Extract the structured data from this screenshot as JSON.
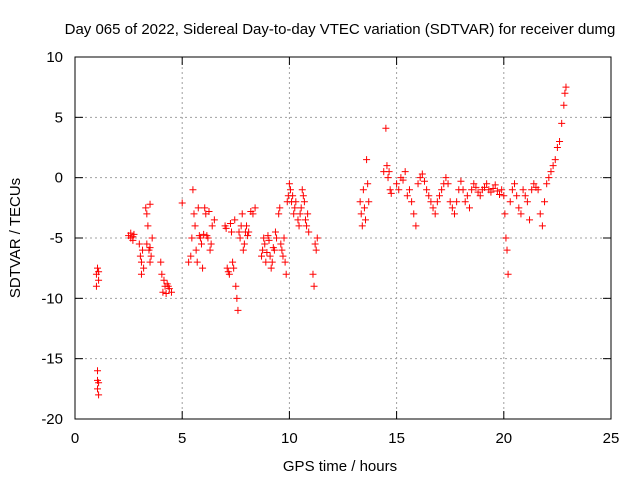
{
  "chart_data": {
    "type": "scatter",
    "title": "Day 065 of 2022, Sidereal Day-to-day VTEC variation (SDTVAR) for receiver dumg",
    "xlabel": "GPS time / hours",
    "ylabel": "SDTVAR / TECUs",
    "xlim": [
      0,
      25
    ],
    "ylim": [
      -20,
      10
    ],
    "xticks": [
      0,
      5,
      10,
      15,
      20,
      25
    ],
    "yticks": [
      -20,
      -15,
      -10,
      -5,
      0,
      5,
      10
    ],
    "xtick_labels": [
      "0",
      "5",
      "10",
      "15",
      "20",
      "25"
    ],
    "ytick_labels": [
      "-20",
      "-15",
      "-10",
      "-5",
      "0",
      "5",
      "10"
    ],
    "grid": true,
    "marker": "+",
    "color": "#ff0000",
    "series": [
      {
        "name": "SDTVAR",
        "x": [
          1.0,
          1.0,
          1.05,
          1.05,
          1.05,
          1.05,
          1.1,
          1.1,
          1.1,
          1.1,
          2.5,
          2.6,
          2.6,
          2.7,
          2.7,
          2.75,
          3.0,
          3.05,
          3.1,
          3.1,
          3.15,
          3.2,
          3.3,
          3.35,
          3.35,
          3.4,
          3.45,
          3.5,
          3.5,
          3.5,
          3.55,
          3.6,
          4.0,
          4.05,
          4.1,
          4.15,
          4.2,
          4.25,
          4.3,
          4.35,
          4.4,
          4.5,
          5.0,
          5.3,
          5.4,
          5.45,
          5.5,
          5.55,
          5.6,
          5.65,
          5.7,
          5.75,
          5.8,
          5.85,
          5.9,
          5.95,
          6.0,
          6.05,
          6.1,
          6.15,
          6.2,
          6.25,
          6.3,
          6.35,
          6.4,
          6.5,
          7.0,
          7.05,
          7.1,
          7.15,
          7.2,
          7.25,
          7.3,
          7.35,
          7.4,
          7.45,
          7.5,
          7.55,
          7.6,
          7.65,
          7.7,
          7.75,
          7.8,
          7.85,
          7.9,
          7.95,
          8.0,
          8.05,
          8.1,
          8.2,
          8.3,
          8.4,
          8.7,
          8.75,
          8.8,
          8.85,
          8.9,
          8.95,
          9.0,
          9.05,
          9.1,
          9.15,
          9.2,
          9.25,
          9.3,
          9.35,
          9.4,
          9.5,
          9.55,
          9.6,
          9.65,
          9.7,
          9.75,
          9.8,
          9.85,
          9.9,
          9.95,
          10.0,
          10.05,
          10.1,
          10.15,
          10.2,
          10.25,
          10.3,
          10.4,
          10.45,
          10.5,
          10.55,
          10.6,
          10.65,
          10.7,
          10.75,
          10.8,
          10.85,
          10.9,
          11.1,
          11.15,
          11.2,
          11.25,
          11.3,
          13.3,
          13.35,
          13.4,
          13.45,
          13.5,
          13.55,
          13.6,
          13.65,
          13.7,
          14.4,
          14.5,
          14.55,
          14.6,
          14.65,
          14.7,
          14.75,
          15.0,
          15.1,
          15.2,
          15.3,
          15.4,
          15.5,
          15.6,
          15.7,
          15.8,
          15.9,
          16.0,
          16.1,
          16.2,
          16.3,
          16.4,
          16.5,
          16.6,
          16.7,
          16.8,
          16.9,
          17.0,
          17.1,
          17.2,
          17.3,
          17.4,
          17.5,
          17.6,
          17.7,
          17.8,
          17.9,
          18.0,
          18.1,
          18.2,
          18.3,
          18.4,
          18.5,
          18.6,
          18.7,
          18.8,
          18.9,
          19.0,
          19.1,
          19.2,
          19.3,
          19.4,
          19.5,
          19.6,
          19.7,
          19.8,
          19.9,
          20.0,
          20.05,
          20.1,
          20.15,
          20.2,
          20.3,
          20.4,
          20.5,
          20.6,
          20.7,
          20.8,
          20.9,
          21.0,
          21.1,
          21.2,
          21.3,
          21.4,
          21.5,
          21.6,
          21.7,
          21.8,
          21.9,
          22.0,
          22.1,
          22.2,
          22.3,
          22.4,
          22.5,
          22.6,
          22.7,
          22.8,
          22.85,
          22.9
        ],
        "y": [
          -9.0,
          -8.0,
          -7.5,
          -16.0,
          -16.8,
          -17.5,
          -18.0,
          -8.5,
          -17.0,
          -7.8,
          -4.8,
          -5.0,
          -4.6,
          -4.9,
          -5.2,
          -4.7,
          -5.5,
          -6.5,
          -7.0,
          -8.0,
          -6.0,
          -7.5,
          -2.5,
          -3.0,
          -5.5,
          -4.0,
          -6.0,
          -7.0,
          -5.8,
          -2.2,
          -6.5,
          -5.0,
          -7.0,
          -8.0,
          -9.5,
          -8.5,
          -9.0,
          -9.6,
          -8.8,
          -9.0,
          -9.2,
          -9.5,
          -2.1,
          -7.0,
          -6.5,
          -5.0,
          -1.0,
          -3.0,
          -4.0,
          -6.0,
          -7.0,
          -2.5,
          -4.8,
          -5.0,
          -5.5,
          -7.5,
          -4.7,
          -2.5,
          -3.0,
          -4.8,
          -5.0,
          -2.8,
          -6.0,
          -5.5,
          -4.0,
          -3.5,
          -4.0,
          -4.2,
          -7.5,
          -7.8,
          -8.0,
          -3.8,
          -4.5,
          -7.0,
          -7.5,
          -3.5,
          -9.0,
          -10.0,
          -11.0,
          -4.5,
          -5.0,
          -4.0,
          -3.0,
          -6.0,
          -5.5,
          -4.5,
          -4.0,
          -4.8,
          -4.5,
          -2.8,
          -3.0,
          -2.5,
          -6.5,
          -6.0,
          -5.0,
          -5.5,
          -7.0,
          -6.2,
          -4.8,
          -5.2,
          -6.5,
          -7.5,
          -7.0,
          -5.8,
          -6.0,
          -4.5,
          -5.0,
          -3.0,
          -2.5,
          -5.5,
          -6.0,
          -6.5,
          -5.0,
          -7.0,
          -8.0,
          -2.0,
          -1.5,
          -0.5,
          -1.0,
          -2.0,
          -1.5,
          -3.0,
          -2.5,
          -2.0,
          -3.5,
          -4.0,
          -3.0,
          -2.5,
          -1.0,
          -1.5,
          -2.0,
          -3.5,
          -4.0,
          -3.0,
          -4.5,
          -8.0,
          -9.0,
          -5.5,
          -6.0,
          -5.0,
          -2.0,
          -3.0,
          -4.0,
          -1.0,
          -2.5,
          -3.5,
          1.5,
          -0.5,
          -2.0,
          0.5,
          4.1,
          1.0,
          0.0,
          0.5,
          -1.0,
          -1.3,
          -0.5,
          -1.0,
          0.0,
          -0.2,
          0.5,
          -1.5,
          -1.0,
          -2.0,
          -3.0,
          -4.0,
          -0.5,
          0.0,
          0.3,
          -0.3,
          -1.0,
          -1.5,
          -2.0,
          -2.5,
          -3.0,
          -2.0,
          -1.5,
          -1.0,
          -0.5,
          0.0,
          -0.5,
          -2.0,
          -2.5,
          -3.0,
          -2.0,
          -1.0,
          -0.3,
          -1.0,
          -2.0,
          -1.5,
          -2.5,
          -1.0,
          -0.5,
          -0.8,
          -1.2,
          -1.5,
          -1.0,
          -0.8,
          -0.5,
          -1.0,
          -1.2,
          -0.9,
          -0.6,
          -1.1,
          -1.4,
          -1.0,
          -1.5,
          -3.0,
          -5.0,
          -6.0,
          -8.0,
          -2.0,
          -1.0,
          -0.5,
          -1.5,
          -2.5,
          -3.0,
          -1.0,
          -1.5,
          -2.0,
          -3.5,
          -1.0,
          -0.5,
          -0.8,
          -1.0,
          -3.0,
          -4.0,
          -2.0,
          -0.5,
          0.0,
          0.5,
          1.0,
          1.5,
          2.5,
          3.0,
          4.5,
          6.0,
          7.0,
          7.5
        ]
      }
    ]
  }
}
